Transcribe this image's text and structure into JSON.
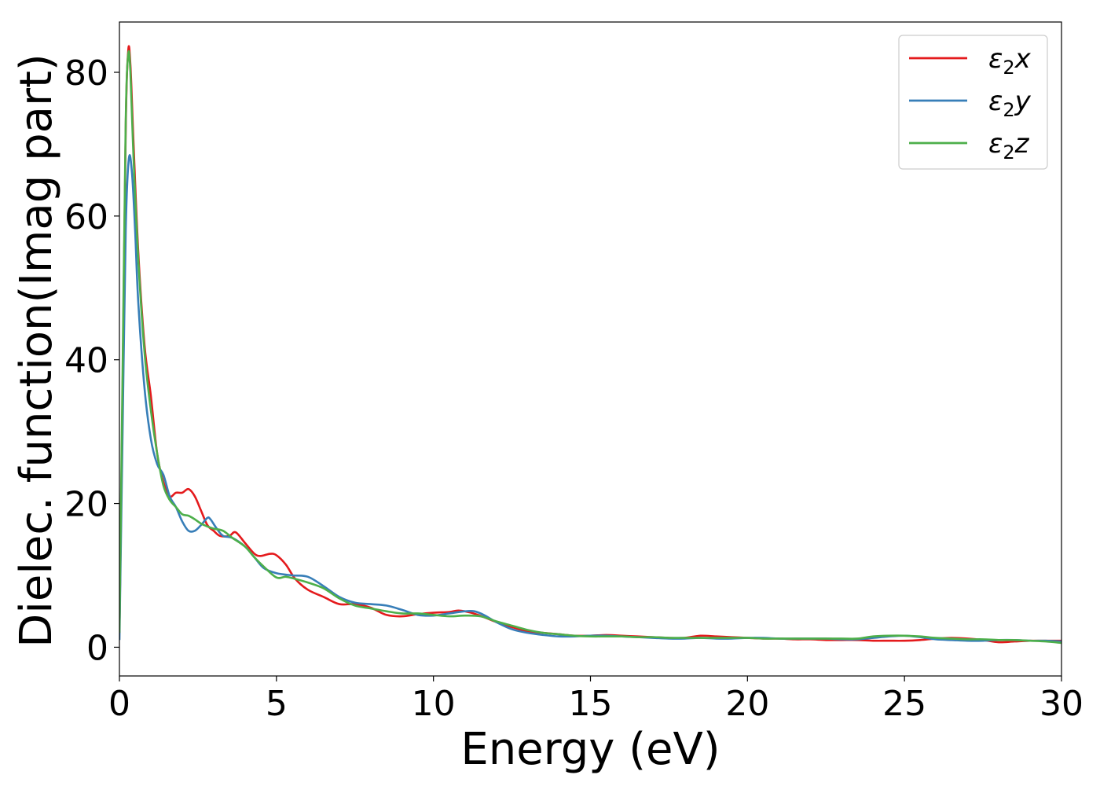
{
  "chart_data": {
    "type": "line",
    "xlabel": "Energy (eV)",
    "ylabel": "Dielec. function(Imag part)",
    "xlim": [
      0,
      30
    ],
    "ylim": [
      -4,
      87
    ],
    "xticks": [
      0,
      5,
      10,
      15,
      20,
      25,
      30
    ],
    "yticks": [
      0,
      20,
      40,
      60,
      80
    ],
    "xtick_labels": [
      "0",
      "5",
      "10",
      "15",
      "20",
      "25",
      "30"
    ],
    "ytick_labels": [
      "0",
      "20",
      "40",
      "60",
      "80"
    ],
    "grid": false,
    "legend_position": "top-right",
    "series": [
      {
        "name": "ε₂x",
        "legend_base": "ε",
        "legend_sub": "2",
        "legend_var": "x",
        "color": "#e41a1c",
        "x": [
          0,
          0.1,
          0.2,
          0.28,
          0.35,
          0.45,
          0.6,
          0.8,
          1.0,
          1.2,
          1.4,
          1.6,
          1.8,
          2.0,
          2.2,
          2.4,
          2.6,
          2.8,
          3.0,
          3.2,
          3.5,
          3.7,
          4.0,
          4.3,
          4.5,
          4.8,
          5.0,
          5.3,
          5.6,
          6.0,
          6.5,
          7.0,
          7.5,
          8.0,
          8.5,
          9.0,
          9.5,
          10.0,
          10.5,
          10.8,
          11.2,
          11.6,
          12.0,
          12.5,
          13.0,
          13.5,
          14.0,
          14.5,
          15.0,
          15.5,
          16.0,
          16.5,
          17.0,
          17.5,
          18.0,
          18.5,
          19.0,
          19.5,
          20.0,
          20.5,
          21.0,
          21.5,
          22.0,
          22.5,
          23.0,
          23.5,
          24.0,
          24.5,
          25.0,
          25.5,
          26.0,
          26.5,
          27.0,
          27.5,
          28.0,
          28.5,
          29.0,
          29.5,
          30.0
        ],
        "y": [
          2,
          35,
          72,
          83,
          81,
          70,
          55,
          42,
          35,
          27,
          23,
          21,
          21.5,
          21.5,
          22,
          21,
          19,
          17,
          16.2,
          15.5,
          15.5,
          16,
          14.5,
          13,
          12.7,
          13,
          12.8,
          11.5,
          9.5,
          8,
          7,
          6,
          6,
          5.5,
          4.5,
          4.3,
          4.6,
          4.8,
          4.9,
          5.1,
          4.8,
          4.2,
          3.5,
          2.8,
          2.2,
          2,
          1.8,
          1.6,
          1.6,
          1.7,
          1.6,
          1.5,
          1.4,
          1.3,
          1.3,
          1.6,
          1.5,
          1.4,
          1.3,
          1.2,
          1.2,
          1.1,
          1.1,
          1.0,
          1.0,
          1.0,
          0.9,
          0.9,
          0.9,
          1.0,
          1.2,
          1.3,
          1.2,
          1.0,
          0.7,
          0.8,
          0.9,
          0.9,
          0.9
        ]
      },
      {
        "name": "ε₂y",
        "legend_base": "ε",
        "legend_sub": "2",
        "legend_var": "y",
        "color": "#377eb8",
        "x": [
          0,
          0.1,
          0.2,
          0.3,
          0.4,
          0.5,
          0.6,
          0.8,
          1.0,
          1.2,
          1.4,
          1.6,
          1.8,
          2.0,
          2.2,
          2.4,
          2.6,
          2.8,
          2.9,
          3.1,
          3.3,
          3.6,
          4.0,
          4.3,
          4.6,
          5.0,
          5.5,
          6.0,
          6.5,
          7.0,
          7.5,
          8.0,
          8.5,
          9.0,
          9.5,
          10.0,
          10.5,
          11.0,
          11.3,
          11.6,
          12.0,
          12.5,
          13.0,
          13.5,
          14.0,
          14.5,
          15.0,
          15.5,
          16.0,
          16.5,
          17.0,
          17.5,
          18.0,
          18.5,
          19.0,
          19.5,
          20.0,
          20.5,
          21.0,
          21.5,
          22.0,
          22.5,
          23.0,
          23.5,
          24.0,
          24.5,
          25.0,
          25.5,
          26.0,
          26.5,
          27.0,
          27.5,
          28.0,
          28.5,
          29.0,
          29.5,
          30.0
        ],
        "y": [
          1,
          30,
          58,
          68,
          66,
          58,
          48,
          36,
          29,
          25.5,
          24,
          21,
          19.5,
          17.5,
          16.2,
          16.2,
          17,
          18,
          17.8,
          16.5,
          15.5,
          15.2,
          14,
          12.5,
          11,
          10.3,
          10,
          9.8,
          8.5,
          7,
          6.2,
          6,
          5.8,
          5.2,
          4.5,
          4.4,
          4.7,
          5.0,
          5.0,
          4.5,
          3.5,
          2.5,
          2.0,
          1.7,
          1.5,
          1.5,
          1.6,
          1.6,
          1.5,
          1.4,
          1.3,
          1.2,
          1.2,
          1.3,
          1.2,
          1.2,
          1.3,
          1.3,
          1.2,
          1.2,
          1.2,
          1.2,
          1.1,
          1.1,
          1.3,
          1.5,
          1.6,
          1.4,
          1.1,
          1.0,
          0.9,
          0.9,
          1.0,
          1.0,
          0.9,
          0.9,
          0.8
        ]
      },
      {
        "name": "ε₂z",
        "legend_base": "ε",
        "legend_sub": "2",
        "legend_var": "z",
        "color": "#4daf4a",
        "x": [
          0,
          0.1,
          0.2,
          0.28,
          0.35,
          0.45,
          0.6,
          0.8,
          1.0,
          1.2,
          1.4,
          1.6,
          1.8,
          2.0,
          2.2,
          2.4,
          2.6,
          2.8,
          3.0,
          3.3,
          3.6,
          4.0,
          4.3,
          4.6,
          5.0,
          5.3,
          5.6,
          6.0,
          6.5,
          7.0,
          7.5,
          8.0,
          8.5,
          9.0,
          9.5,
          10.0,
          10.5,
          11.0,
          11.5,
          12.0,
          12.5,
          13.0,
          13.5,
          14.0,
          14.5,
          15.0,
          15.5,
          16.0,
          16.5,
          17.0,
          17.5,
          18.0,
          18.5,
          19.0,
          19.5,
          20.0,
          20.5,
          21.0,
          21.5,
          22.0,
          22.5,
          23.0,
          23.5,
          24.0,
          24.5,
          25.0,
          25.5,
          26.0,
          26.5,
          27.0,
          27.5,
          28.0,
          28.5,
          29.0,
          29.5,
          30.0
        ],
        "y": [
          2,
          38,
          73,
          82.5,
          80,
          68,
          54,
          41,
          33,
          27,
          22.5,
          20.5,
          19.5,
          18.5,
          18.3,
          17.8,
          17.2,
          16.8,
          16.5,
          16.2,
          15.2,
          14,
          12.5,
          11.2,
          9.7,
          9.8,
          9.5,
          9,
          8.2,
          6.8,
          5.8,
          5.4,
          5.0,
          4.7,
          4.7,
          4.5,
          4.3,
          4.4,
          4.3,
          3.6,
          3.0,
          2.4,
          2.0,
          1.8,
          1.6,
          1.5,
          1.5,
          1.5,
          1.4,
          1.4,
          1.3,
          1.3,
          1.3,
          1.3,
          1.3,
          1.3,
          1.2,
          1.2,
          1.2,
          1.2,
          1.2,
          1.2,
          1.2,
          1.5,
          1.6,
          1.6,
          1.5,
          1.3,
          1.2,
          1.1,
          1.1,
          1.0,
          1.0,
          0.9,
          0.8,
          0.6
        ]
      }
    ]
  }
}
